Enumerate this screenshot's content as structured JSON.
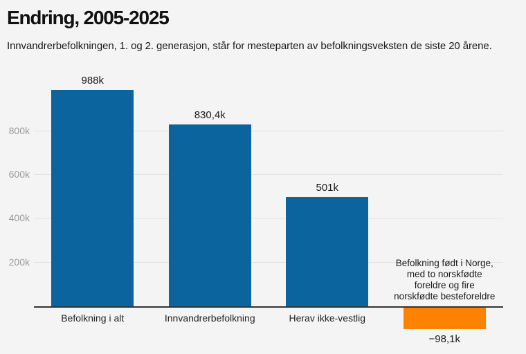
{
  "header": {
    "title": "Endring, 2005-2025",
    "subtitle": "Innvandrerbefolkningen, 1. og 2. generasjon, står for mesteparten av befolkningsveksten de siste 20 årene."
  },
  "chart_data": {
    "type": "bar",
    "title": "Endring, 2005-2025",
    "subtitle": "Innvandrerbefolkningen, 1. og 2. generasjon, står for mesteparten av befolkningsveksten de siste 20 årene.",
    "categories": [
      "Befolkning i alt",
      "Innvandrerbefolkning",
      "Herav ikke-vestlig",
      ""
    ],
    "values": [
      988,
      830.4,
      501,
      -98.1
    ],
    "value_labels": [
      "988k",
      "830,4k",
      "501k",
      "−98,1k"
    ],
    "unit": "k (thousands)",
    "xlabel": "",
    "ylabel": "",
    "ylim": [
      -150,
      1090
    ],
    "yticks": [
      200,
      400,
      600,
      800
    ],
    "ytick_labels": [
      "200k",
      "400k",
      "600k",
      "800k"
    ],
    "grid": true,
    "legend": "none",
    "annotation": {
      "lines": [
        "Befolkning født i Norge,",
        "med to norskfødte",
        "foreldre og fire",
        "norskfødte besteforeldre"
      ],
      "target_bar_index": 3
    },
    "colors": {
      "positive_bar": "#0b649d",
      "negative_bar": "#fc8200",
      "background": "#f4f4f4",
      "grid_line": "#e2e2e2",
      "axis_line": "#333333",
      "tick_label": "#999999",
      "text": "#1a1a1a"
    }
  }
}
